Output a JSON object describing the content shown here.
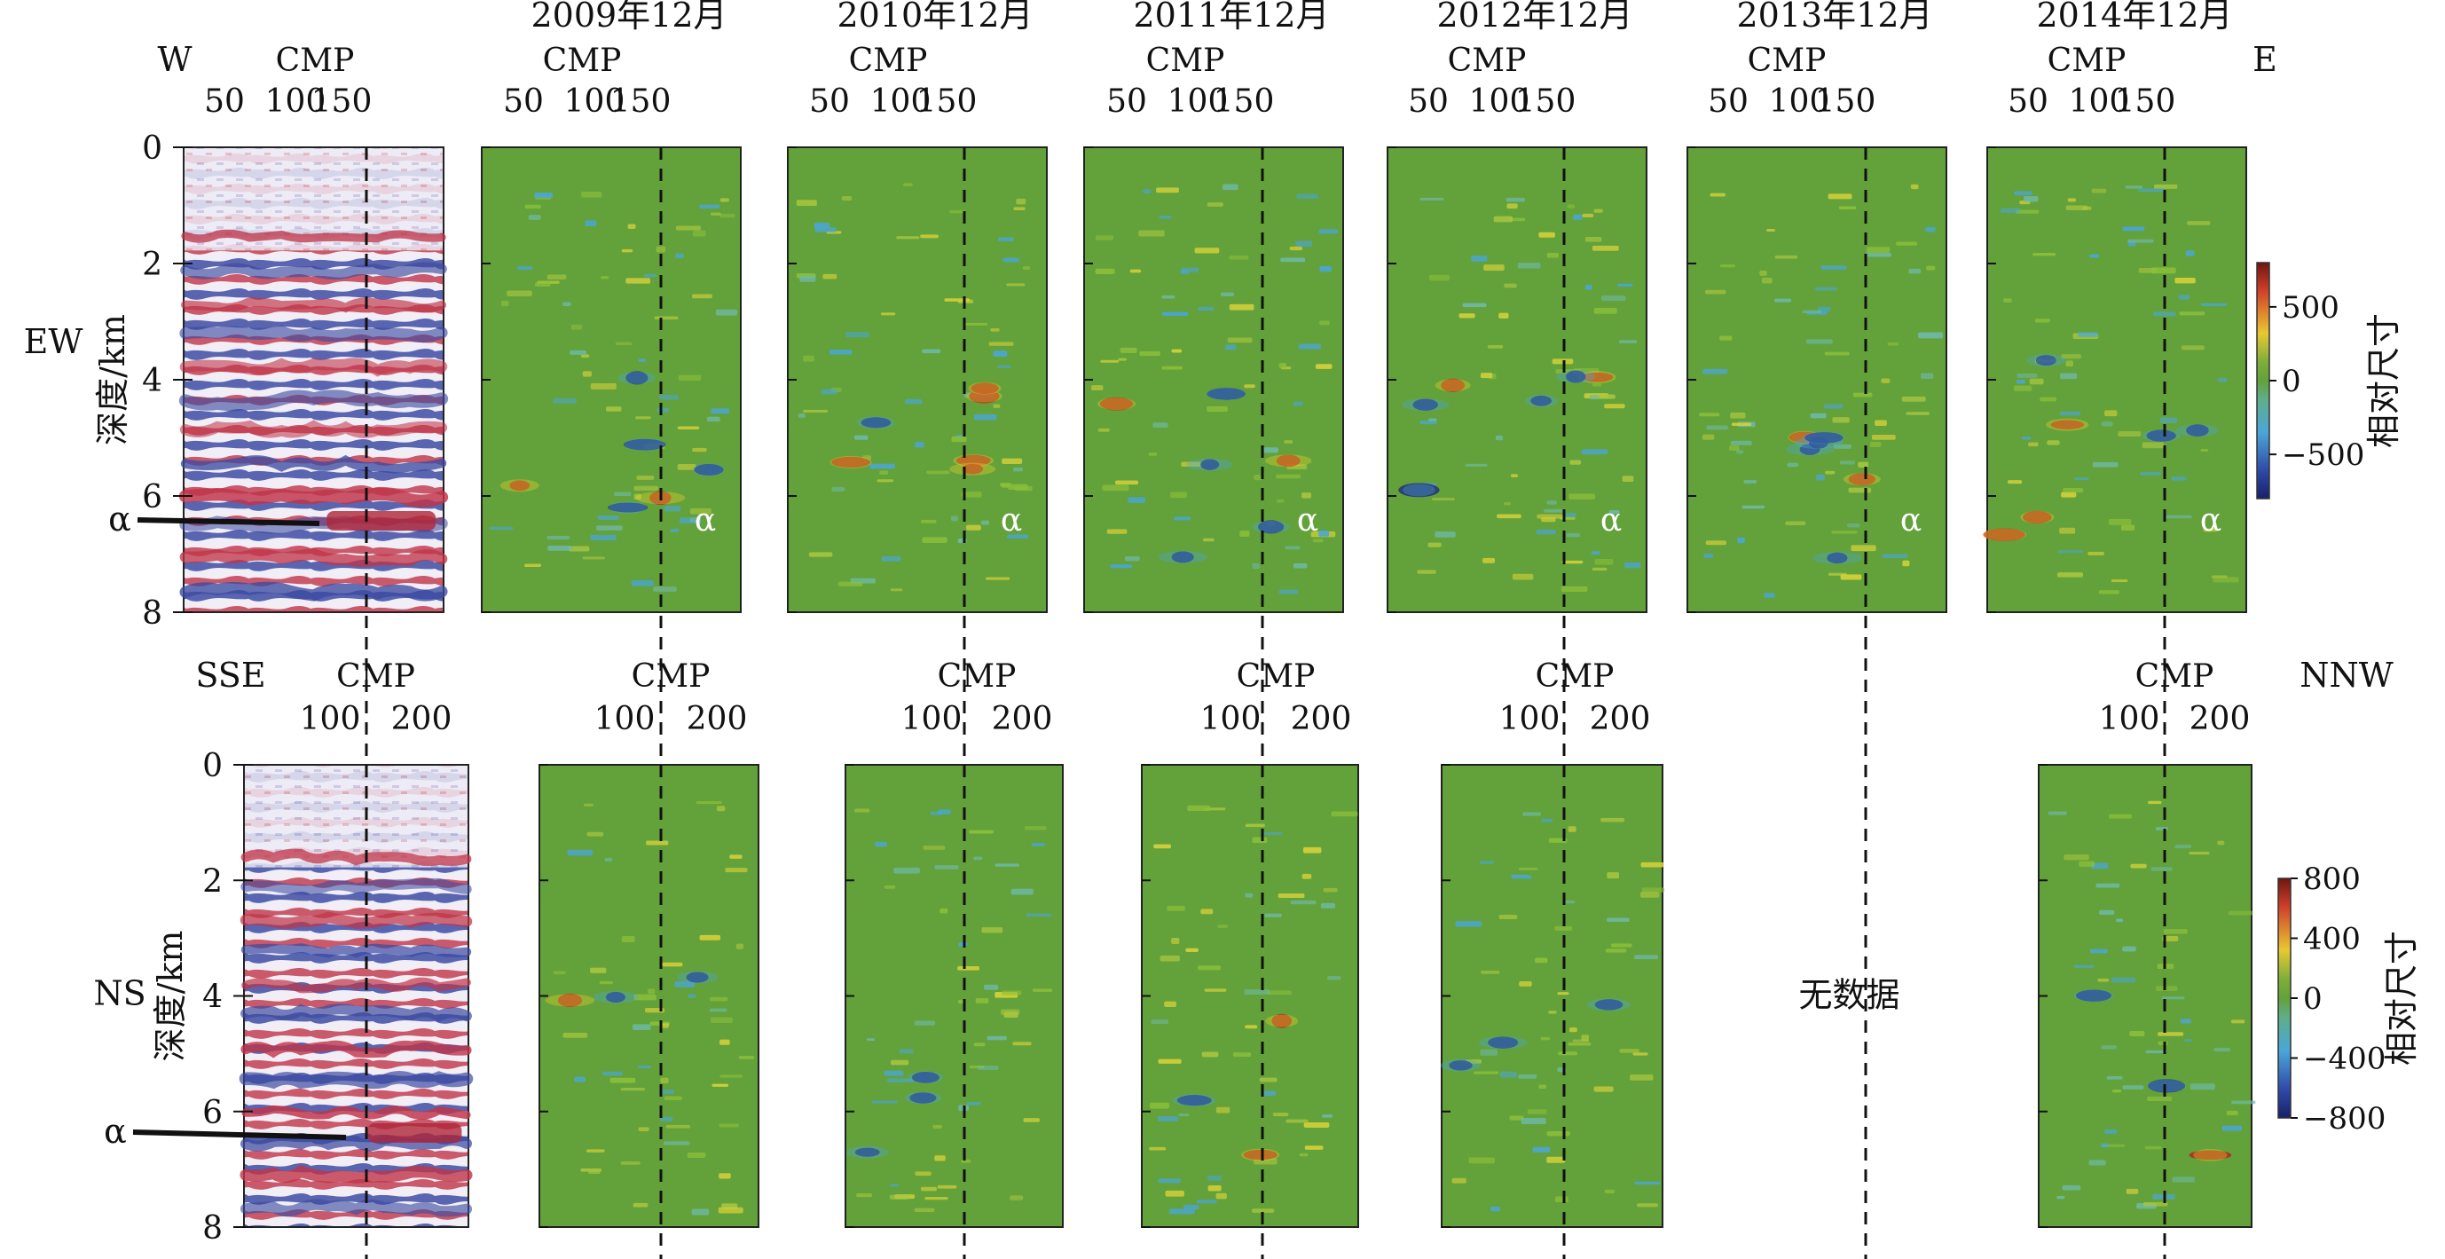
{
  "rows": [
    {
      "id": "ew",
      "row_label": "EW",
      "depth_label": "深度/km",
      "left_dir": "W",
      "right_dir": "E",
      "cmp_label": "CMP",
      "cmp_ticks": [
        "50",
        "100",
        "150"
      ],
      "depth_ticks": [
        "0",
        "2",
        "4",
        "6",
        "8"
      ],
      "alpha": "α",
      "panels": [
        {
          "year": "",
          "kind": "seismic",
          "has_data": true
        },
        {
          "year": "2009年12月",
          "kind": "difference",
          "has_data": true
        },
        {
          "year": "2010年12月",
          "kind": "difference",
          "has_data": true
        },
        {
          "year": "2011年12月",
          "kind": "difference",
          "has_data": true
        },
        {
          "year": "2012年12月",
          "kind": "difference",
          "has_data": true
        },
        {
          "year": "2013年12月",
          "kind": "difference",
          "has_data": true
        },
        {
          "year": "2014年12月",
          "kind": "difference",
          "has_data": true
        }
      ],
      "colorbar": {
        "title": "相对尺寸",
        "ticks": [
          "500",
          "0",
          "−500"
        ],
        "range": [
          -800,
          800
        ]
      }
    },
    {
      "id": "ns",
      "row_label": "NS",
      "depth_label": "深度/km",
      "left_dir": "SSE",
      "right_dir": "NNW",
      "cmp_label": "CMP",
      "cmp_ticks": [
        "100",
        "200"
      ],
      "depth_ticks": [
        "0",
        "2",
        "4",
        "6",
        "8"
      ],
      "alpha": "α",
      "panels": [
        {
          "kind": "seismic",
          "has_data": true
        },
        {
          "kind": "difference",
          "has_data": true
        },
        {
          "kind": "difference",
          "has_data": true
        },
        {
          "kind": "difference",
          "has_data": true
        },
        {
          "kind": "difference",
          "has_data": true
        },
        {
          "kind": "difference",
          "has_data": false,
          "no_data_text": "无数据"
        },
        {
          "kind": "difference",
          "has_data": true
        }
      ],
      "colorbar": {
        "title": "相对尺寸",
        "ticks": [
          "800",
          "400",
          "0",
          "−400",
          "−800"
        ],
        "range": [
          -800,
          800
        ]
      }
    }
  ],
  "colors": {
    "background_green": "#63a13a",
    "positive_high": "#b0281e",
    "positive_mid": "#f0d02a",
    "negative_mid": "#4aa6d8",
    "negative_high": "#23307e",
    "seismic_red": "#c03448",
    "seismic_blue": "#3b4aa0",
    "seismic_white": "#f4f4fa"
  }
}
